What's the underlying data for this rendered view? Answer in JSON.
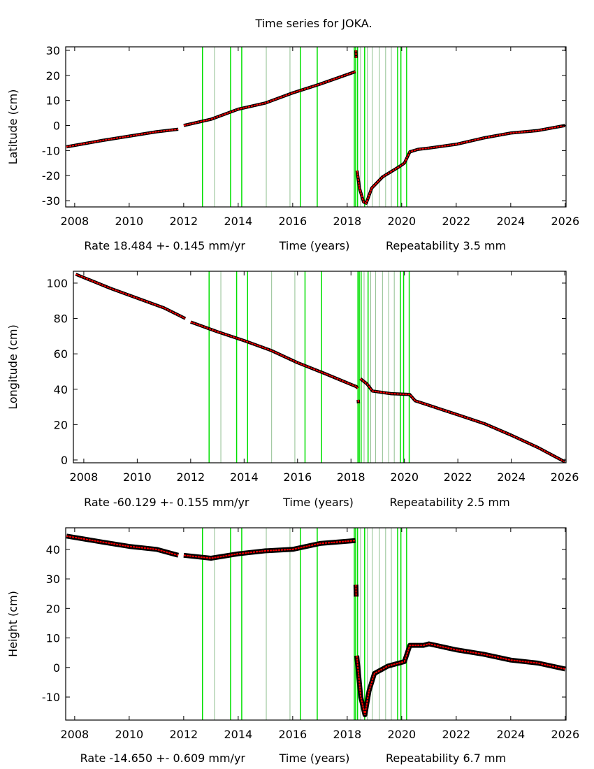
{
  "title": "Time series for JOKA.",
  "colors": {
    "model": "#ff0000",
    "data": "#000000",
    "event_line": "#00e000",
    "minor_event_line": "#8fbf8f"
  },
  "chart_data": [
    {
      "type": "scatter",
      "ylabel": "Latitude (cm)",
      "xlabel": "Time (years)",
      "rate": "Rate 18.484 +- 0.145 mm/yr",
      "repeatability": "Repeatability 3.5 mm",
      "xlim": [
        2007.67,
        2026.03
      ],
      "ylim": [
        -32.5,
        31.4
      ],
      "xticks": [
        "2008",
        "2010",
        "2012",
        "2014",
        "2016",
        "2018",
        "2020",
        "2022",
        "2024",
        "2026"
      ],
      "yticks": [
        "-30",
        "-20",
        "-10",
        "0",
        "10",
        "20",
        "30"
      ],
      "segments": [
        [
          [
            2007.7,
            -8.5
          ],
          [
            2009,
            -6
          ],
          [
            2011,
            -2.5
          ],
          [
            2011.8,
            -1.5
          ]
        ],
        [
          [
            2012.0,
            0
          ],
          [
            2013,
            2.5
          ],
          [
            2014,
            6.5
          ],
          [
            2015,
            9
          ],
          [
            2016,
            13
          ],
          [
            2017,
            16.5
          ],
          [
            2018.3,
            21.5
          ]
        ],
        [
          [
            2018.32,
            30
          ],
          [
            2018.33,
            27
          ]
        ],
        [
          [
            2018.36,
            -18
          ],
          [
            2018.45,
            -25
          ],
          [
            2018.6,
            -30.5
          ],
          [
            2018.7,
            -31
          ],
          [
            2018.9,
            -25
          ],
          [
            2019.3,
            -20.5
          ],
          [
            2019.9,
            -16.5
          ],
          [
            2020.1,
            -15
          ],
          [
            2020.3,
            -10.5
          ],
          [
            2020.6,
            -9.5
          ],
          [
            2021.0,
            -9
          ],
          [
            2022,
            -7.5
          ],
          [
            2023,
            -5
          ],
          [
            2024,
            -3
          ],
          [
            2025,
            -2
          ],
          [
            2026.0,
            0
          ]
        ]
      ]
    },
    {
      "type": "scatter",
      "ylabel": "Longitude (cm)",
      "xlabel": "Time (years)",
      "rate": "Rate -60.129 +- 0.155 mm/yr",
      "repeatability": "Repeatability 2.5 mm",
      "xlim": [
        2007.61,
        2026.05
      ],
      "ylim": [
        -1.6,
        106.7
      ],
      "xticks": [
        "2008",
        "2010",
        "2012",
        "2014",
        "2016",
        "2018",
        "2020",
        "2022",
        "2024",
        "2026"
      ],
      "yticks": [
        "0",
        "20",
        "40",
        "60",
        "80",
        "100"
      ],
      "segments": [
        [
          [
            2007.7,
            105
          ],
          [
            2009,
            97
          ],
          [
            2011,
            86
          ],
          [
            2011.8,
            80
          ]
        ],
        [
          [
            2012.0,
            78
          ],
          [
            2013,
            72.5
          ],
          [
            2014,
            67.5
          ],
          [
            2015,
            62
          ],
          [
            2016,
            55
          ],
          [
            2017,
            49
          ],
          [
            2018.2,
            41.5
          ],
          [
            2018.25,
            40.5
          ]
        ],
        [
          [
            2018.27,
            34
          ],
          [
            2018.28,
            32
          ]
        ],
        [
          [
            2018.35,
            46
          ],
          [
            2018.6,
            43
          ],
          [
            2018.8,
            39
          ],
          [
            2019.5,
            37.5
          ],
          [
            2020.2,
            37
          ],
          [
            2020.4,
            33.5
          ],
          [
            2020.7,
            32
          ],
          [
            2021.0,
            30.5
          ],
          [
            2022,
            25.5
          ],
          [
            2023,
            20.5
          ],
          [
            2024,
            14
          ],
          [
            2025,
            7
          ],
          [
            2026.0,
            -1
          ]
        ]
      ]
    },
    {
      "type": "scatter",
      "ylabel": "Height (cm)",
      "xlabel": "Time (years)",
      "rate": "Rate -14.650 +- 0.609 mm/yr",
      "repeatability": "Repeatability 6.7 mm",
      "xlim": [
        2007.67,
        2026.03
      ],
      "ylim": [
        -17.8,
        47.3
      ],
      "xticks": [
        "2008",
        "2010",
        "2012",
        "2014",
        "2016",
        "2018",
        "2020",
        "2022",
        "2024",
        "2026"
      ],
      "yticks": [
        "-10",
        "0",
        "10",
        "20",
        "30",
        "40"
      ],
      "segments": [
        [
          [
            2007.7,
            44.5
          ],
          [
            2009,
            42.5
          ],
          [
            2010,
            41
          ],
          [
            2011,
            40
          ],
          [
            2011.8,
            38
          ]
        ],
        [
          [
            2012.0,
            38
          ],
          [
            2013,
            37
          ],
          [
            2014,
            38.5
          ],
          [
            2015,
            39.5
          ],
          [
            2016,
            40
          ],
          [
            2017,
            42
          ],
          [
            2018.3,
            43
          ]
        ],
        [
          [
            2018.32,
            28
          ],
          [
            2018.33,
            24
          ]
        ],
        [
          [
            2018.35,
            4
          ],
          [
            2018.5,
            -10
          ],
          [
            2018.65,
            -16
          ],
          [
            2018.8,
            -8
          ],
          [
            2019.0,
            -2
          ],
          [
            2019.5,
            0.5
          ],
          [
            2020.1,
            2
          ],
          [
            2020.3,
            7.5
          ],
          [
            2020.8,
            7.5
          ],
          [
            2021.0,
            8
          ],
          [
            2022,
            6
          ],
          [
            2023,
            4.5
          ],
          [
            2024,
            2.5
          ],
          [
            2025,
            1.5
          ],
          [
            2026.0,
            -0.5
          ]
        ]
      ]
    }
  ],
  "events": [
    {
      "year": 2012.69,
      "major": true
    },
    {
      "year": 2013.13,
      "major": false
    },
    {
      "year": 2013.72,
      "major": true
    },
    {
      "year": 2014.13,
      "major": true
    },
    {
      "year": 2015.03,
      "major": false
    },
    {
      "year": 2015.9,
      "major": false
    },
    {
      "year": 2016.28,
      "major": true
    },
    {
      "year": 2016.9,
      "major": true
    },
    {
      "year": 2018.26,
      "major": true
    },
    {
      "year": 2018.31,
      "major": true
    },
    {
      "year": 2018.38,
      "major": true
    },
    {
      "year": 2018.49,
      "major": false
    },
    {
      "year": 2018.64,
      "major": true
    },
    {
      "year": 2018.74,
      "major": false
    },
    {
      "year": 2018.92,
      "major": false
    },
    {
      "year": 2019.18,
      "major": false
    },
    {
      "year": 2019.41,
      "major": false
    },
    {
      "year": 2019.62,
      "major": false
    },
    {
      "year": 2019.85,
      "major": true
    },
    {
      "year": 2019.97,
      "major": true
    },
    {
      "year": 2020.18,
      "major": true
    }
  ]
}
